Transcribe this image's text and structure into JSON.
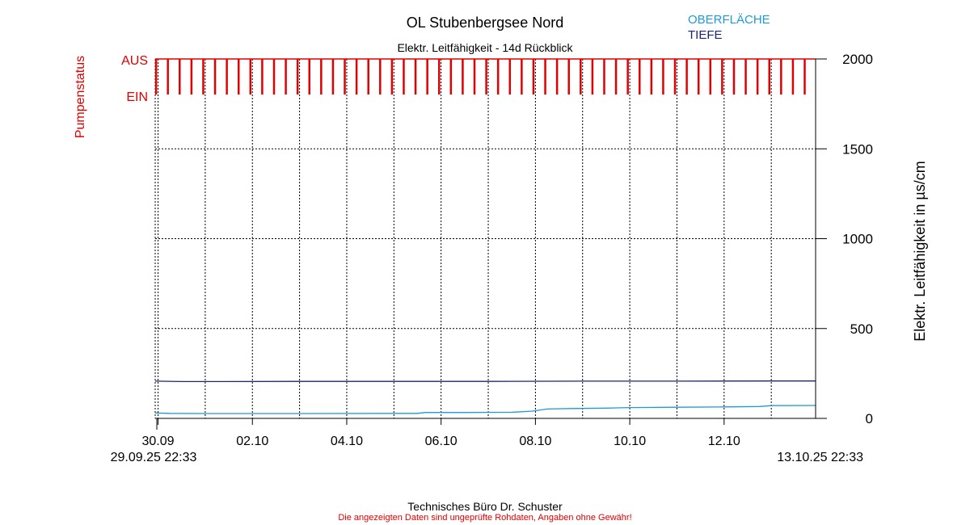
{
  "header": {
    "title": "OL Stubenbergsee Nord",
    "subtitle": "Elektr. Leitfähigkeit - 14d Rückblick"
  },
  "footer": {
    "company": "Technisches Büro Dr. Schuster",
    "disclaimer": "Die angezeigten Daten sind ungeprüfte Rohdaten, Angaben ohne Gewähr!"
  },
  "colors": {
    "pump": "#e00000",
    "surface": "#1e9bd6",
    "depth": "#1a237e",
    "grid": "#000000"
  },
  "chart_data": {
    "type": "line",
    "title": "OL Stubenbergsee Nord",
    "subtitle": "Elektr. Leitfähigkeit - 14d Rückblick",
    "ylabel": "Elektr. Leitfähigkeit in µs/cm",
    "ylabel_left": "Pumpenstatus",
    "ylim": [
      0,
      2000
    ],
    "y_ticks": [
      0,
      500,
      1000,
      1500,
      2000
    ],
    "x_ticks": [
      "30.09",
      "02.10",
      "04.10",
      "06.10",
      "08.10",
      "10.10",
      "12.10"
    ],
    "x_start_label": "29.09.25 22:33",
    "x_end_label": "13.10.25 22:33",
    "x_range": [
      "2025-09-29 22:33",
      "2025-10-13 22:33"
    ],
    "grid": true,
    "legend": {
      "placement": "top-right",
      "entries": [
        "OBERFLÄCHE",
        "TIEFE"
      ]
    },
    "pump_status": {
      "labels": [
        "AUS",
        "EIN"
      ],
      "pulses_per_day": 4,
      "pulse_start": "2025-09-29 23:00",
      "pulse_interval_hours": 6
    },
    "series": [
      {
        "name": "OBERFLÄCHE",
        "points": [
          [
            "2025-09-29 22:33",
            30
          ],
          [
            "2025-09-30 06:00",
            28
          ],
          [
            "2025-10-01 00:00",
            27
          ],
          [
            "2025-10-03 00:00",
            27
          ],
          [
            "2025-10-05 12:00",
            28
          ],
          [
            "2025-10-05 16:00",
            33
          ],
          [
            "2025-10-06 12:00",
            33
          ],
          [
            "2025-10-07 12:00",
            34
          ],
          [
            "2025-10-07 22:00",
            40
          ],
          [
            "2025-10-08 06:00",
            52
          ],
          [
            "2025-10-08 18:00",
            55
          ],
          [
            "2025-10-09 12:00",
            57
          ],
          [
            "2025-10-10 00:00",
            60
          ],
          [
            "2025-10-11 00:00",
            62
          ],
          [
            "2025-10-12 00:00",
            64
          ],
          [
            "2025-10-12 18:00",
            66
          ],
          [
            "2025-10-13 00:00",
            71
          ],
          [
            "2025-10-13 22:33",
            72
          ]
        ]
      },
      {
        "name": "TIEFE",
        "points": [
          [
            "2025-09-29 22:33",
            207
          ],
          [
            "2025-09-30 12:00",
            205
          ],
          [
            "2025-10-01 12:00",
            205
          ],
          [
            "2025-10-03 00:00",
            206
          ],
          [
            "2025-10-05 00:00",
            206
          ],
          [
            "2025-10-07 00:00",
            206
          ],
          [
            "2025-10-09 00:00",
            207
          ],
          [
            "2025-10-11 00:00",
            207
          ],
          [
            "2025-10-13 00:00",
            208
          ],
          [
            "2025-10-13 22:33",
            208
          ]
        ]
      }
    ]
  }
}
